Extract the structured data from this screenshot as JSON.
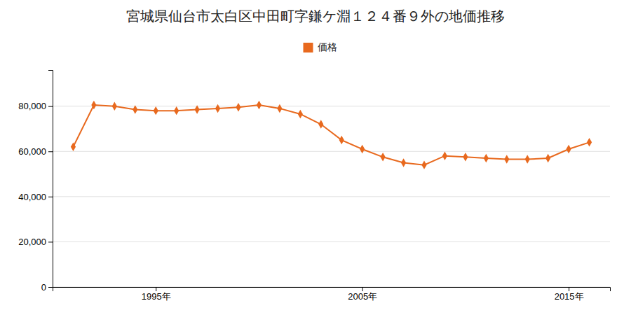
{
  "chart_data": {
    "type": "line",
    "title": "宮城県仙台市太白区中田町字鎌ケ淵１２４番９外の地価推移",
    "x": [
      1991,
      1992,
      1993,
      1994,
      1995,
      1996,
      1997,
      1998,
      1999,
      2000,
      2001,
      2002,
      2003,
      2004,
      2005,
      2006,
      2007,
      2008,
      2009,
      2010,
      2011,
      2012,
      2013,
      2014,
      2015,
      2016
    ],
    "series": [
      {
        "name": "価格",
        "color": "#E8691E",
        "marker": "diamond",
        "values": [
          62000,
          80500,
          80000,
          78500,
          78000,
          78000,
          78500,
          79000,
          79500,
          80500,
          79000,
          76500,
          72000,
          65000,
          61000,
          57500,
          55000,
          54000,
          58000,
          57500,
          57000,
          56500,
          56500,
          57000,
          61000,
          64000
        ]
      }
    ],
    "xlim": [
      1990,
      2017
    ],
    "ylim": [
      0,
      96000
    ],
    "xticks": [
      {
        "value": 1995,
        "label": "1995年"
      },
      {
        "value": 2005,
        "label": "2005年"
      },
      {
        "value": 2015,
        "label": "2015年"
      }
    ],
    "yticks": [
      0,
      {
        "value": 20000,
        "label": "20,000"
      },
      {
        "value": 40000,
        "label": "40,000"
      },
      {
        "value": 60000,
        "label": "60,000"
      },
      {
        "value": 80000,
        "label": "80,000"
      }
    ],
    "grid": true,
    "legend": "top"
  }
}
